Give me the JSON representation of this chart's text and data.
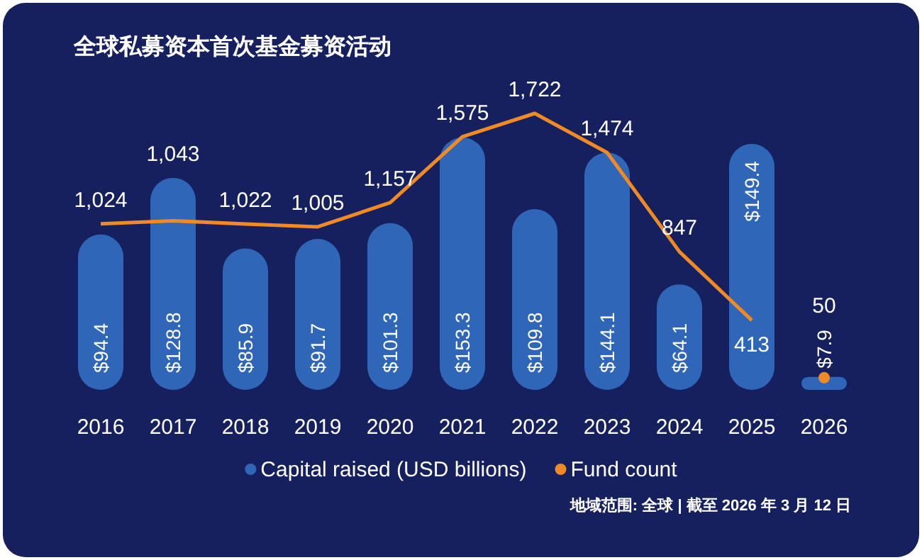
{
  "chart_data": {
    "type": "bar",
    "title": "全球私募资本首次基金募资活动",
    "categories": [
      "2016",
      "2017",
      "2018",
      "2019",
      "2020",
      "2021",
      "2022",
      "2023",
      "2024",
      "2025",
      "2026"
    ],
    "series": [
      {
        "type": "bar",
        "name": "Capital raised (USD billions)",
        "color": "#2f66b8",
        "values": [
          94.4,
          128.8,
          85.9,
          91.7,
          101.3,
          153.3,
          109.8,
          144.1,
          64.1,
          149.4,
          7.9
        ],
        "value_labels": [
          "$94.4",
          "$128.8",
          "$85.9",
          "$91.7",
          "$101.3",
          "$153.3",
          "$109.8",
          "$144.1",
          "$64.1",
          "$149.4",
          "$7.9"
        ]
      },
      {
        "type": "line",
        "axis": "y2",
        "name": "Fund count",
        "color": "#f08a24",
        "values": [
          1024,
          1043,
          1022,
          1005,
          1157,
          1575,
          1722,
          1474,
          847,
          413,
          null
        ],
        "value_labels": [
          "1,024",
          "1,043",
          "1,022",
          "1,005",
          "1,157",
          "1,575",
          "1,722",
          "1,474",
          "847",
          "413",
          null
        ]
      },
      {
        "type": "scatter",
        "axis": "y2",
        "color": "#f08a24",
        "marker": "circle",
        "values": [
          null,
          null,
          null,
          null,
          null,
          null,
          null,
          null,
          null,
          null,
          50
        ],
        "value_labels": [
          null,
          null,
          null,
          null,
          null,
          null,
          null,
          null,
          null,
          null,
          "50"
        ]
      }
    ],
    "legend": "bottom",
    "annotations": [
      "地域范围: 全球 | 截至 2026 年 3 月 12 日"
    ]
  }
}
